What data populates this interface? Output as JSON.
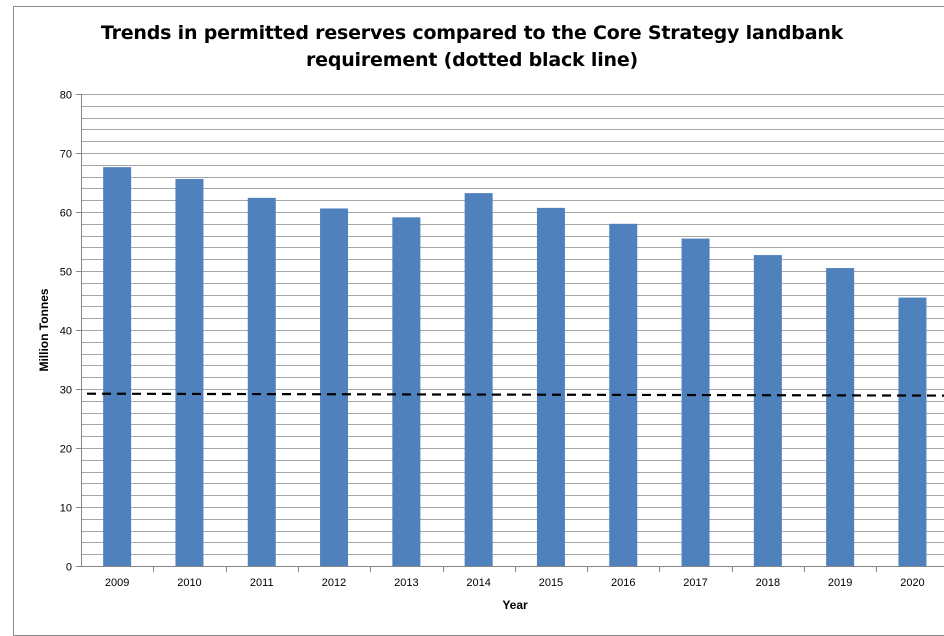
{
  "chart_data": {
    "type": "bar",
    "title_lines": [
      "Trends in permitted reserves compared to the Core Strategy landbank",
      "requirement (dotted black line)"
    ],
    "xlabel": "Year",
    "ylabel": "Million Tonnes",
    "ylim": [
      0,
      80
    ],
    "yticks": [
      0,
      10,
      20,
      30,
      40,
      50,
      60,
      70,
      80
    ],
    "minor_grid_step": 2,
    "grid": true,
    "categories": [
      "2009",
      "2010",
      "2011",
      "2012",
      "2013",
      "2014",
      "2015",
      "2016",
      "2017",
      "2018",
      "2019",
      "2020"
    ],
    "series": [
      {
        "values": [
          67.6,
          65.6,
          62.4,
          60.6,
          59.1,
          63.2,
          60.7,
          58.0,
          55.5,
          52.7,
          50.5,
          45.5
        ],
        "color": "#4f81bd"
      }
    ],
    "reference_line": {
      "values": [
        29.2,
        29.2,
        29.2,
        29.1,
        29.1,
        29.1,
        29.1,
        29.0,
        29.0,
        29.0,
        28.9,
        28.9
      ],
      "color": "#000000",
      "style": "dashed"
    },
    "legend": "none"
  }
}
